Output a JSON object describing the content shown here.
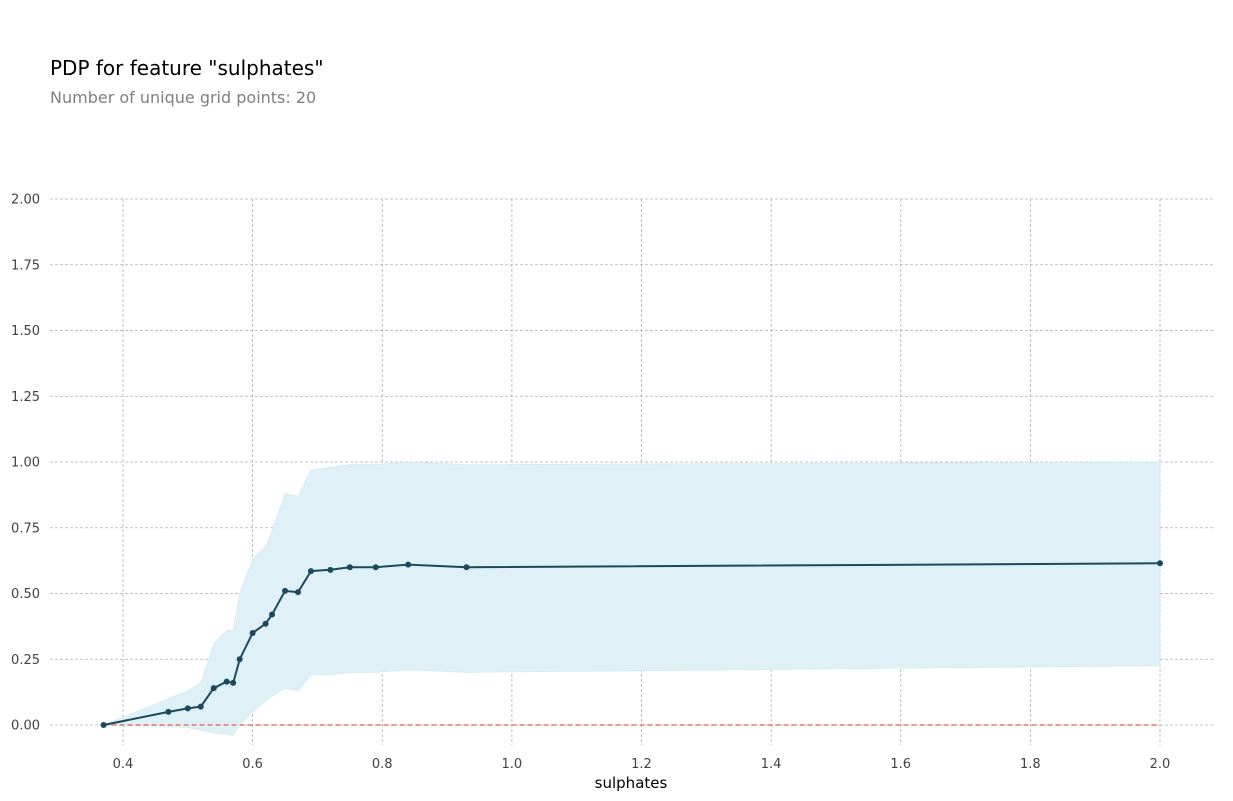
{
  "title": "PDP for feature \"sulphates\"",
  "subtitle": "Number of unique grid points: 20",
  "chart_data": {
    "type": "line",
    "xlabel": "sulphates",
    "ylabel": "",
    "xlim": [
      0.285,
      2.08
    ],
    "ylim": [
      -0.04,
      2.0
    ],
    "x_ticks": [
      "0.4",
      "0.6",
      "0.8",
      "1.0",
      "1.2",
      "1.4",
      "1.6",
      "1.8",
      "2.0"
    ],
    "y_ticks": [
      "0.00",
      "0.25",
      "0.50",
      "0.75",
      "1.00",
      "1.25",
      "1.50",
      "1.75",
      "2.00"
    ],
    "grid": true,
    "series": [
      {
        "x": [
          0.37,
          0.47,
          0.5,
          0.52,
          0.54,
          0.56,
          0.57,
          0.58,
          0.6,
          0.62,
          0.63,
          0.65,
          0.67,
          0.69,
          0.72,
          0.75,
          0.79,
          0.84,
          0.93,
          2.0
        ],
        "y": [
          0.0,
          0.05,
          0.063,
          0.07,
          0.14,
          0.165,
          0.16,
          0.25,
          0.35,
          0.385,
          0.42,
          0.51,
          0.505,
          0.585,
          0.59,
          0.6,
          0.6,
          0.61,
          0.6,
          0.615
        ],
        "upper": [
          0.0,
          0.1,
          0.13,
          0.16,
          0.31,
          0.36,
          0.36,
          0.5,
          0.63,
          0.68,
          0.74,
          0.88,
          0.87,
          0.97,
          0.98,
          0.99,
          0.99,
          1.0,
          0.99,
          1.0
        ],
        "lower": [
          0.0,
          -0.005,
          -0.01,
          -0.02,
          -0.03,
          -0.035,
          -0.04,
          0.0,
          0.05,
          0.09,
          0.11,
          0.14,
          0.13,
          0.19,
          0.19,
          0.2,
          0.2,
          0.21,
          0.2,
          0.225
        ]
      }
    ],
    "reference_line": 0,
    "colors": {
      "line": "#1a4a5c",
      "band": "#dff0f6",
      "reference": "#e06050",
      "grid": "#b0b0b0"
    }
  }
}
